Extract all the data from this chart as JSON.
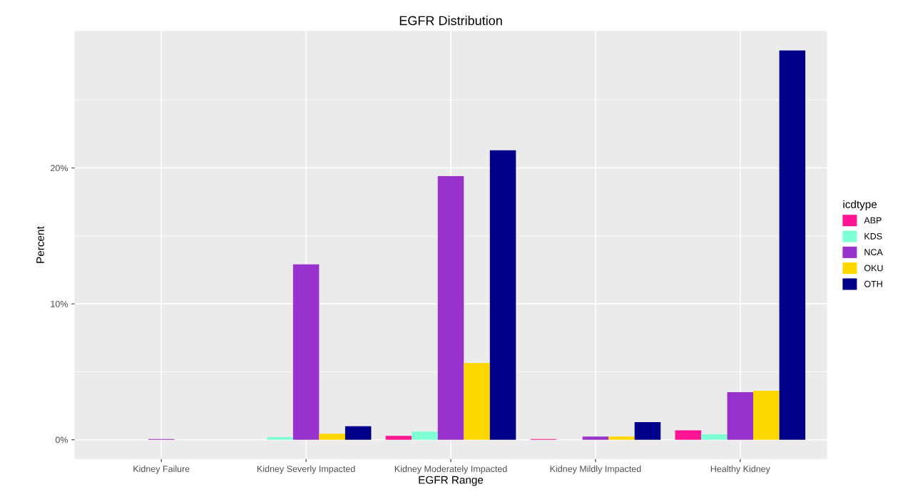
{
  "chart_data": {
    "type": "bar",
    "title": "EGFR Distribution",
    "xlabel": "EGFR Range",
    "ylabel": "Percent",
    "legend_title": "icdtype",
    "categories": [
      "Kidney Failure",
      "Kidney Severly Impacted",
      "Kidney Moderately Impacted",
      "Kidney Mildly Impacted",
      "Healthy Kidney"
    ],
    "series": [
      {
        "name": "ABP",
        "color": "#ff1493",
        "values": [
          null,
          null,
          0.28,
          0.05,
          0.69
        ]
      },
      {
        "name": "KDS",
        "color": "#7fffd4",
        "values": [
          null,
          0.2,
          0.6,
          null,
          0.4
        ]
      },
      {
        "name": "NCA",
        "color": "#9932cc",
        "values": [
          0.05,
          12.9,
          19.4,
          0.24,
          3.5
        ]
      },
      {
        "name": "OKU",
        "color": "#ffd700",
        "values": [
          null,
          0.45,
          5.65,
          0.24,
          3.6
        ]
      },
      {
        "name": "OTH",
        "color": "#00008b",
        "values": [
          null,
          1.0,
          21.3,
          1.3,
          28.65
        ]
      }
    ],
    "ylim": [
      -1.42,
      30.08
    ],
    "yticks": [
      {
        "value": 0,
        "label": "0%"
      },
      {
        "value": 5,
        "label": null
      },
      {
        "value": 10,
        "label": "10%"
      },
      {
        "value": 15,
        "label": null
      },
      {
        "value": 20,
        "label": "20%"
      },
      {
        "value": 25,
        "label": null
      }
    ],
    "grid": true,
    "legend": "right"
  }
}
